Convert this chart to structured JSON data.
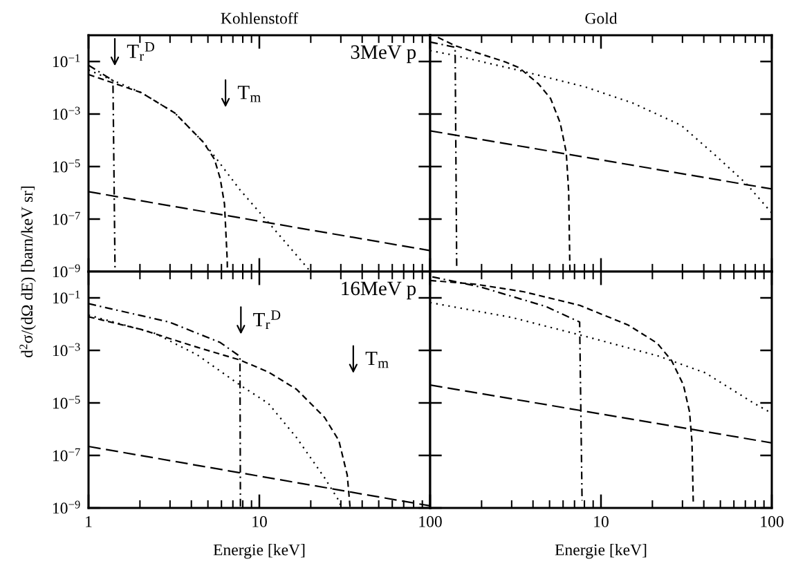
{
  "chart_data": [
    {
      "type": "line",
      "title": "Kohlenstoff",
      "ylabel": "d$^{2}$σ/(dΩ dE) [barn/keV sr]",
      "log": "xy",
      "tick_labels": "y",
      "xlim": [
        1,
        100
      ],
      "xticks": [
        1,
        10,
        100
      ],
      "ylim": [
        1e-09,
        1
      ],
      "yticks": [
        {
          "value": 1e-09,
          "label": "10$^{−9}$"
        },
        {
          "value": 1e-07,
          "label": "10$^{−7}$"
        },
        {
          "value": 1e-05,
          "label": "10$^{−5}$"
        },
        {
          "value": 0.001,
          "label": "10$^{−3}$"
        },
        {
          "value": 0.1,
          "label": "10$^{−1}$"
        }
      ],
      "annotations": [
        "3MeV p",
        "T$_{r}$$^{D}$",
        "T$_{m}$"
      ],
      "series": [
        {
          "line_style": "dashdot",
          "x": [
            1,
            1.39,
            1.43
          ],
          "values": [
            0.072,
            0.019,
            1e-09
          ]
        },
        {
          "line_style": "dotted",
          "x": [
            1,
            2.03,
            3.2,
            4.7,
            5.46,
            7.7,
            11.3,
            18.1,
            19.9
          ],
          "values": [
            0.048,
            0.0066,
            0.0011,
            8.5e-05,
            2.5e-05,
            1.3e-06,
            7.4e-08,
            2.1e-09,
            1e-09
          ]
        },
        {
          "line_style": "dashed",
          "x": [
            1,
            2.03,
            3.2,
            4.7,
            5.46,
            5.9,
            6.25,
            6.49,
            6.5
          ],
          "values": [
            0.032,
            0.0066,
            0.0011,
            8.5e-05,
            1.9e-05,
            3.5e-06,
            3.8e-07,
            2.6e-09,
            1e-09
          ]
        },
        {
          "line_style": "long dashed",
          "x": [
            1,
            100
          ],
          "values": [
            1.1e-06,
            6.3e-09
          ]
        }
      ]
    },
    {
      "type": "line",
      "title": "Gold",
      "log": "xy",
      "tick_labels": false,
      "xlim": [
        1,
        100
      ],
      "xticks": [
        1,
        10,
        100
      ],
      "ylim": [
        1e-09,
        1
      ],
      "yticks": [
        1e-09,
        1e-07,
        1e-05,
        0.001,
        0.1
      ],
      "series": [
        {
          "line_style": "dashed",
          "x": [
            1.11,
            1.4,
            2.73,
            3.32,
            4.31,
            5.07,
            5.77,
            6.26,
            6.47,
            6.58
          ],
          "values": [
            0.83,
            0.4,
            0.098,
            0.058,
            0.014,
            0.0039,
            0.00046,
            3.5e-05,
            1.1e-06,
            1e-09
          ]
        },
        {
          "line_style": "dashdot",
          "x": [
            1,
            1.4,
            1.43
          ],
          "values": [
            0.55,
            0.35,
            1.6e-09
          ]
        },
        {
          "line_style": "dotted",
          "x": [
            1,
            1.4,
            3.32,
            8.0,
            15.4,
            29.5,
            48,
            71,
            100
          ],
          "values": [
            0.26,
            0.17,
            0.046,
            0.011,
            0.0026,
            0.00037,
            2.3e-05,
            2.2e-06,
            1.7e-07
          ]
        },
        {
          "line_style": "long dashed",
          "x": [
            1,
            100
          ],
          "values": [
            0.00023,
            1.4e-06
          ]
        }
      ]
    },
    {
      "type": "line",
      "xlabel": "Energie [keV]",
      "log": "xy",
      "xlim": [
        1,
        100
      ],
      "xticks": [
        1,
        10,
        100
      ],
      "ylim": [
        1e-09,
        1
      ],
      "yticks": [
        {
          "value": 1e-09,
          "label": "10$^{−9}$"
        },
        {
          "value": 1e-07,
          "label": "10$^{−7}$"
        },
        {
          "value": 1e-05,
          "label": "10$^{−5}$"
        },
        {
          "value": 0.001,
          "label": "10$^{−3}$"
        },
        {
          "value": 0.1,
          "label": "10$^{−1}$"
        }
      ],
      "annotations": [
        "16MeV p",
        "T$_{r}$$^{D}$",
        "T$_{m}$"
      ],
      "series": [
        {
          "line_style": "dashdot",
          "x": [
            1,
            2.97,
            5.9,
            7.7,
            7.75
          ],
          "values": [
            0.06,
            0.012,
            0.002,
            0.00059,
            1e-09
          ]
        },
        {
          "line_style": "dashed",
          "x": [
            1,
            2.03,
            4.35,
            7.7,
            11.3,
            16.5,
            24.1,
            29.2,
            32.7,
            34.0
          ],
          "values": [
            0.019,
            0.0063,
            0.0013,
            0.00043,
            0.00015,
            3.3e-05,
            2.8e-06,
            3.7e-07,
            1.8e-08,
            1e-09
          ]
        },
        {
          "line_style": "dotted",
          "x": [
            1,
            2.46,
            4.35,
            7.7,
            11.3,
            16.5,
            24.1,
            29.2,
            30.3
          ],
          "values": [
            0.022,
            0.0044,
            0.00066,
            4.8e-05,
            9.5e-06,
            4.8e-07,
            1.4e-08,
            1.9e-09,
            1e-09
          ]
        },
        {
          "line_style": "long dashed",
          "x": [
            1,
            100
          ],
          "values": [
            2.2e-07,
            1.2e-09
          ]
        }
      ]
    },
    {
      "type": "line",
      "xlabel": "Energie [keV]",
      "log": "xy",
      "tick_labels": "x",
      "xlim": [
        1,
        100
      ],
      "xticks": [
        {
          "value": 1,
          "label": null
        },
        10,
        100
      ],
      "ylim": [
        1e-09,
        1
      ],
      "yticks": [
        1e-09,
        1e-07,
        1e-05,
        0.001,
        0.1
      ],
      "series": [
        {
          "line_style": "dashed",
          "x": [
            1,
            1.85,
            3.54,
            7.5,
            14.4,
            21.3,
            25.9,
            30.4,
            33.0,
            34.1,
            34.7
          ],
          "values": [
            0.46,
            0.33,
            0.17,
            0.052,
            0.0093,
            0.0019,
            0.00041,
            4.8e-05,
            4.5e-06,
            3.3e-07,
            1.5e-09
          ]
        },
        {
          "line_style": "dashdot",
          "x": [
            1.03,
            1.97,
            4.75,
            7.5,
            7.75
          ],
          "values": [
            0.63,
            0.26,
            0.047,
            0.012,
            1.9e-09
          ]
        },
        {
          "line_style": "dotted",
          "x": [
            1,
            3.0,
            8.0,
            21.3,
            40.8,
            78,
            97
          ],
          "values": [
            0.066,
            0.018,
            0.0035,
            0.00063,
            0.00014,
            1e-05,
            4.5e-06
          ]
        },
        {
          "line_style": "long dashed",
          "x": [
            1,
            100
          ],
          "values": [
            4.8e-05,
            3e-07
          ]
        }
      ]
    }
  ]
}
